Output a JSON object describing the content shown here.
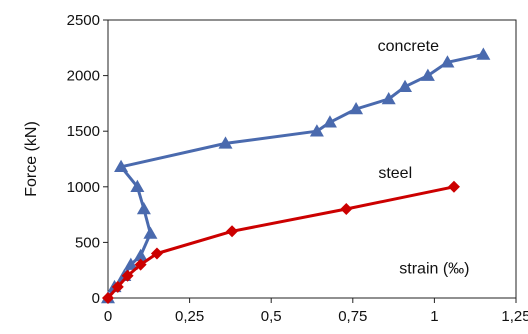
{
  "chart_data": {
    "type": "line",
    "title": "",
    "xlabel": "",
    "ylabel": "Force (kN)",
    "xlim": [
      0,
      1.25
    ],
    "ylim": [
      0,
      2500
    ],
    "grid": false,
    "legend": "none",
    "x_ticks": [
      "0",
      "0,25",
      "0,5",
      "0,75",
      "1",
      "1,25"
    ],
    "y_ticks": [
      "0",
      "500",
      "1000",
      "1500",
      "2000",
      "2500"
    ],
    "series": [
      {
        "name": "concrete",
        "marker": "triangle",
        "color": "#4a6aae",
        "points": [
          [
            0,
            0
          ],
          [
            0.02,
            100
          ],
          [
            0.05,
            200
          ],
          [
            0.07,
            300
          ],
          [
            0.1,
            380
          ],
          [
            0.13,
            580
          ],
          [
            0.11,
            800
          ],
          [
            0.09,
            1000
          ],
          [
            0.04,
            1180
          ],
          [
            0.36,
            1390
          ],
          [
            0.64,
            1500
          ],
          [
            0.68,
            1580
          ],
          [
            0.76,
            1700
          ],
          [
            0.86,
            1790
          ],
          [
            0.91,
            1900
          ],
          [
            0.98,
            2000
          ],
          [
            1.04,
            2120
          ],
          [
            1.15,
            2190
          ]
        ]
      },
      {
        "name": "steel",
        "marker": "diamond",
        "color": "#cc0000",
        "points": [
          [
            0,
            0
          ],
          [
            0.03,
            100
          ],
          [
            0.06,
            200
          ],
          [
            0.1,
            300
          ],
          [
            0.15,
            400
          ],
          [
            0.38,
            600
          ],
          [
            0.73,
            800
          ],
          [
            1.06,
            1000
          ]
        ]
      }
    ],
    "annotations": [
      {
        "text": "strain (‰)",
        "x": 1.0,
        "y": 220
      }
    ]
  }
}
